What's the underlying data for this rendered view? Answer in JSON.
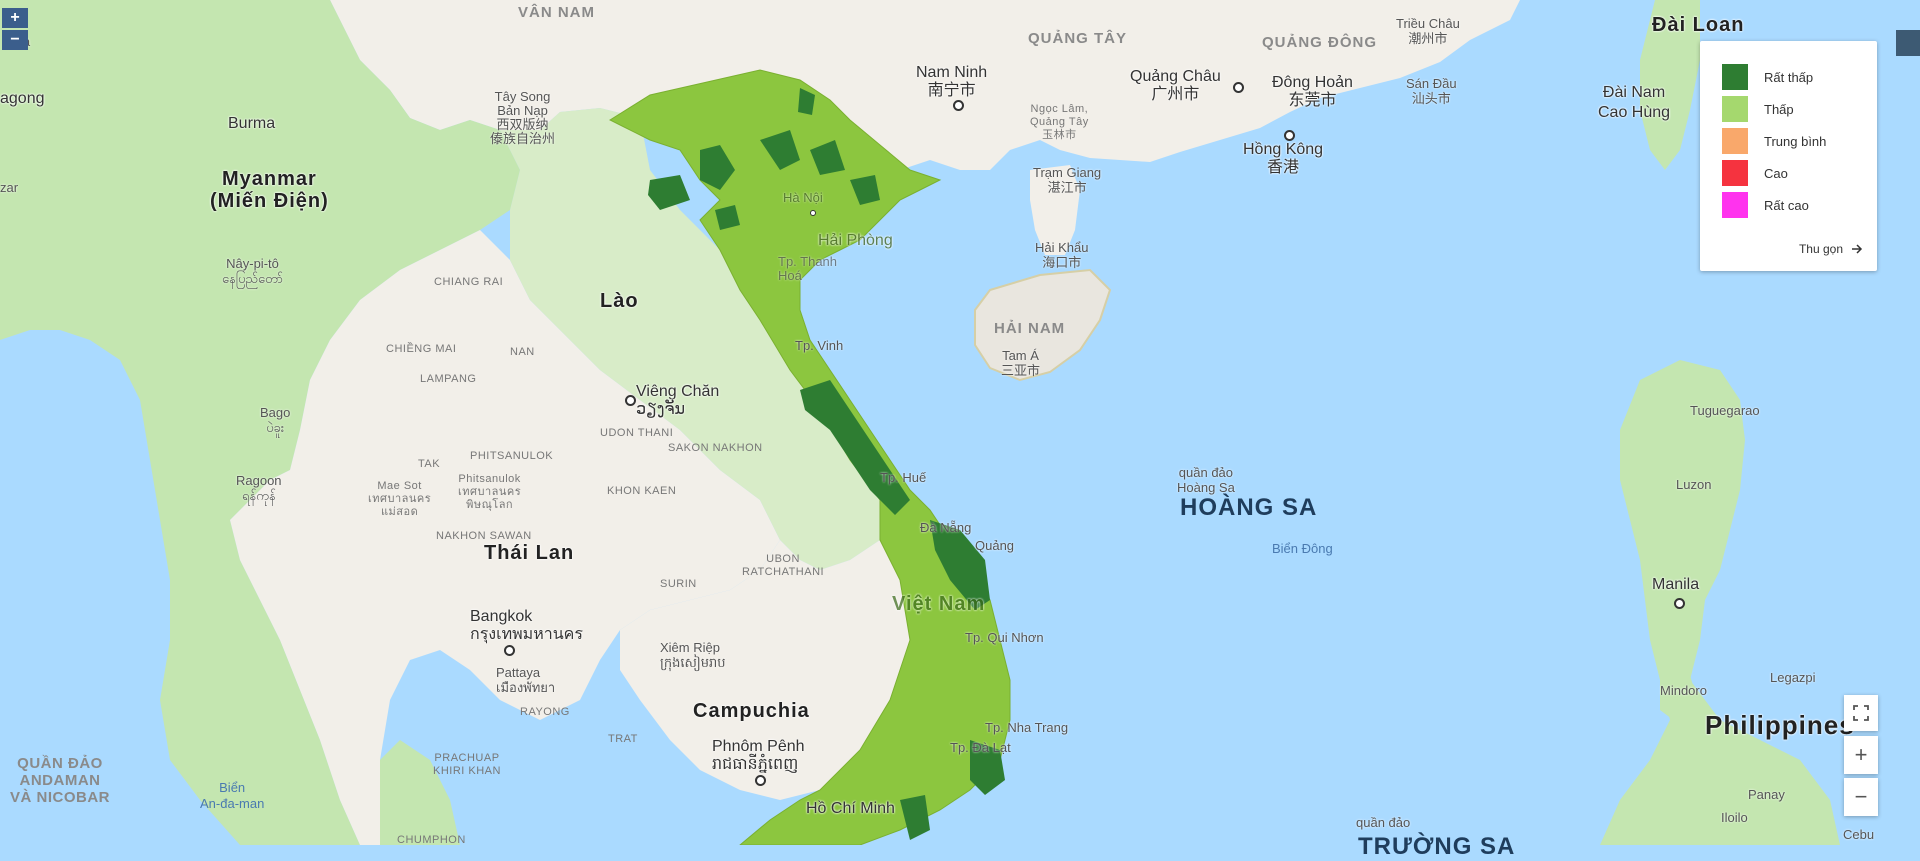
{
  "map": {
    "country_labels": {
      "myanmar": "Myanmar\n(Miến Điện)",
      "lao": "Lào",
      "thailand": "Thái Lan",
      "cambodia": "Campuchia",
      "vietnam": "Việt Nam",
      "philippines": "Philippines",
      "taiwan": "Đài Loan",
      "burma": "Burma"
    },
    "region_labels": {
      "van_nam": "VÂN NAM",
      "quang_tay": "QUẢNG TÂY",
      "quang_dong": "QUẢNG ĐÔNG",
      "hai_nam": "HẢI NAM",
      "andaman": "QUẦN ĐẢO\nANDAMAN\nVÀ NICOBAR"
    },
    "province_labels": {
      "chiang_rai": "CHIANG RAI",
      "chiang_mai": "CHIỀNG MAI",
      "lampang": "LAMPANG",
      "nan": "NAN",
      "tak": "TAK",
      "phitsanulok": "PHITSANULOK",
      "udon": "UDON THANI",
      "sakon": "SAKON NAKHON",
      "khon_kaen": "KHON KAEN",
      "nakhon_sawan": "NAKHON SAWAN",
      "ubon": "UBON\nRATCHATHANI",
      "surin": "SURIN",
      "rayong": "RAYONG",
      "trat": "TRAT",
      "prachuap": "PRACHUAP\nKHIRI KHAN",
      "chumphon": "CHUMPHON"
    },
    "city_labels": {
      "hanoi": "Hà Nội",
      "haiphong": "Hải Phòng",
      "thanhhoa": "Tp. Thanh\nHoá",
      "vinh": "Tp. Vinh",
      "hue": "Tp. Huế",
      "danang": "Đà Nẵng",
      "quangngai": "Quảng",
      "quinhon": "Tp. Qui Nhơn",
      "nhatrang": "Tp. Nha Trang",
      "dalat": "Tp. Đà Lạt",
      "hcm": "Hồ Chí Minh",
      "vientiane": "Viêng Chăn\nວຽງຈັນ",
      "bangkok": "Bangkok\nกรุงเทพมหานคร",
      "pattaya": "Pattaya\nเมืองพัทยา",
      "siemreap": "Xiêm Riệp\nក្រុងសៀមរាប",
      "phnompenh": "Phnôm Pênh\nរាជធានីភ្នំពេញ",
      "nanning": "Nam Ninh\n南宁市",
      "guangzhou": "Quảng Châu\n广州市",
      "dongguan": "Đông Hoản\n东莞市",
      "hongkong": "Hồng Kông\n香港",
      "zhanjiang": "Trạm Giang\n湛江市",
      "haikou": "Hải Khẩu\n海口市",
      "sanya": "Tam Á\n三亚市",
      "chaozhou": "Triều Châu\n潮州市",
      "shantou": "Sán Đầu\n汕头市",
      "yulin": "Ngọc Lâm,\nQuảng Tây\n玉林市",
      "xishuangbanna": "Tây Song\nBản Nạp\n西双版纳\n傣族自治州",
      "kaohsiung": "Đài Nam\nCao Hùng",
      "manila": "Manila",
      "tuguegarao": "Tuguegarao",
      "luzon": "Luzon",
      "legazpi": "Legazpi",
      "mindoro": "Mindoro",
      "panay": "Panay",
      "iloilo": "Iloilo",
      "cebu": "Cebu",
      "naypyidaw": "Nây-pi-tô\nနေပြည်တော်",
      "bago": "Bago\nပဲခူး",
      "yangon": "Ragoon\nရန်ကုန်",
      "maesot": "Mae Sot\nเทศบาลนคร\nแม่สอด",
      "phitsanulok_city": "Phitsanulok\nเทศบาลนคร\nพิษณุโลก",
      "agong": "agong",
      "la": "la",
      "zar": "zar"
    },
    "sea_labels": {
      "hoang_sa_small": "quần đảo\nHoàng Sa",
      "hoang_sa_big": "HOÀNG SA",
      "bien_dong": "Biển Đông",
      "andaman_sea": "Biển\nAn-đa-man",
      "truong_sa_small": "quần đảo",
      "truong_sa_big": "TRƯỜNG SA"
    }
  },
  "legend": {
    "items": [
      {
        "label": "Rất thấp",
        "color": "#2e7d32"
      },
      {
        "label": "Thấp",
        "color": "#a5d86e"
      },
      {
        "label": "Trung bình",
        "color": "#f9a86b"
      },
      {
        "label": "Cao",
        "color": "#f5333f"
      },
      {
        "label": "Rất cao",
        "color": "#ff33ee"
      }
    ],
    "collapse_label": "Thu gọn"
  },
  "controls": {
    "zoom_in": "+",
    "zoom_out": "−",
    "fullscreen_icon": "fullscreen-icon"
  }
}
